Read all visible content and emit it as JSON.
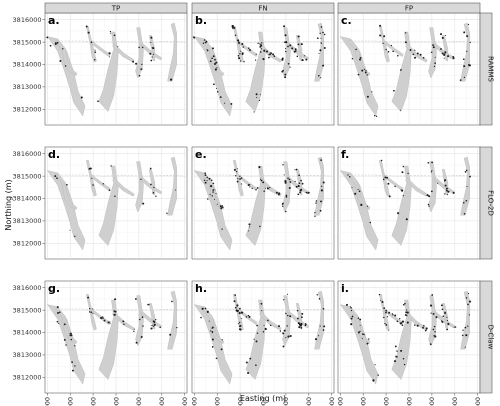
{
  "chart_data": {
    "type": "scatter",
    "facet_columns": [
      "TP",
      "FN",
      "FP"
    ],
    "facet_rows": [
      "RAMMS",
      "FLO-2D",
      "D-Claw"
    ],
    "panel_tags": [
      [
        "a.",
        "b.",
        "c."
      ],
      [
        "d.",
        "e.",
        "f."
      ],
      [
        "g.",
        "h.",
        "i."
      ]
    ],
    "xlabel": "Easting (m)",
    "ylabel": "Northing (m)",
    "xlim": [
      255900,
      262100
    ],
    "ylim": [
      3811300,
      3816300
    ],
    "x_ticks": [
      256000,
      257000,
      258000,
      259000,
      260000,
      261000,
      262000
    ],
    "y_ticks": [
      3812000,
      3813000,
      3814000,
      3815000,
      3816000
    ],
    "grid": true,
    "colors": {
      "points": "#1c1c1c",
      "footprint": "#cfcfcf",
      "strip": "#d9d9d9"
    },
    "point_density": [
      [
        0.35,
        1.0,
        0.6
      ],
      [
        0.2,
        0.9,
        0.45
      ],
      [
        0.55,
        0.8,
        1.0
      ]
    ]
  }
}
